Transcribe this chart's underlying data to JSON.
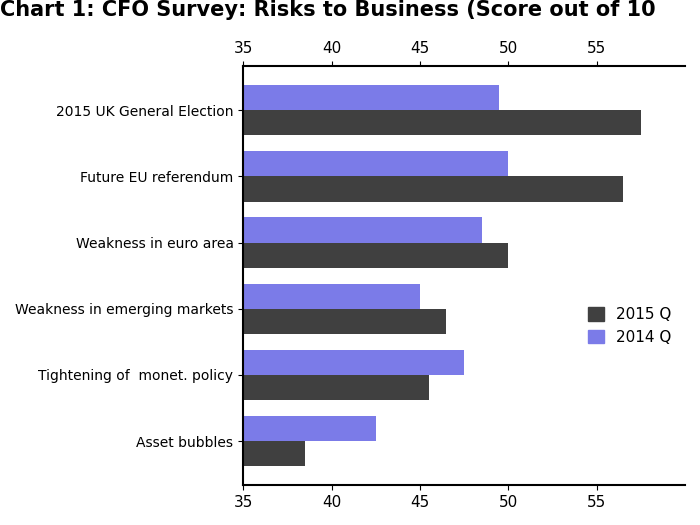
{
  "title": "Chart 1: CFO Survey: Risks to Business (Score out of 10",
  "categories": [
    "2015 UK General Election",
    "Future EU referendum",
    "Weakness in euro area",
    "Weakness in emerging markets",
    "Tightening of  monet. policy",
    "Asset bubbles"
  ],
  "values_2015": [
    57.5,
    56.5,
    50.0,
    46.5,
    45.5,
    38.5
  ],
  "values_2014": [
    49.5,
    50.0,
    48.5,
    45.0,
    47.5,
    42.5
  ],
  "color_2015": "#404040",
  "color_2014": "#7b7be8",
  "xlim_min": 35,
  "xlim_max": 60,
  "xticks": [
    35,
    40,
    45,
    50,
    55
  ],
  "legend_2015": "2015 Q",
  "legend_2014": "2014 Q",
  "background_color": "#ffffff",
  "title_fontsize": 15,
  "tick_fontsize": 11,
  "label_fontsize": 11,
  "bar_height": 0.38
}
